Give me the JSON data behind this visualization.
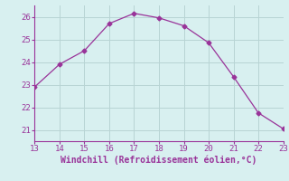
{
  "x": [
    13,
    14,
    15,
    16,
    17,
    18,
    19,
    20,
    21,
    22,
    23
  ],
  "y": [
    22.9,
    23.9,
    24.5,
    25.7,
    26.15,
    25.95,
    25.6,
    24.85,
    23.35,
    21.75,
    21.05
  ],
  "xlim": [
    13,
    23
  ],
  "ylim": [
    20.5,
    26.5
  ],
  "xticks": [
    13,
    14,
    15,
    16,
    17,
    18,
    19,
    20,
    21,
    22,
    23
  ],
  "yticks": [
    21,
    22,
    23,
    24,
    25,
    26
  ],
  "xlabel": "Windchill (Refroidissement éolien,°C)",
  "line_color": "#993399",
  "marker": "D",
  "marker_size": 2.5,
  "bg_color": "#d8f0f0",
  "grid_color": "#b8d4d4",
  "tick_color": "#993399",
  "label_color": "#993399",
  "font_family": "monospace",
  "tick_fontsize": 6.5,
  "label_fontsize": 7.0
}
